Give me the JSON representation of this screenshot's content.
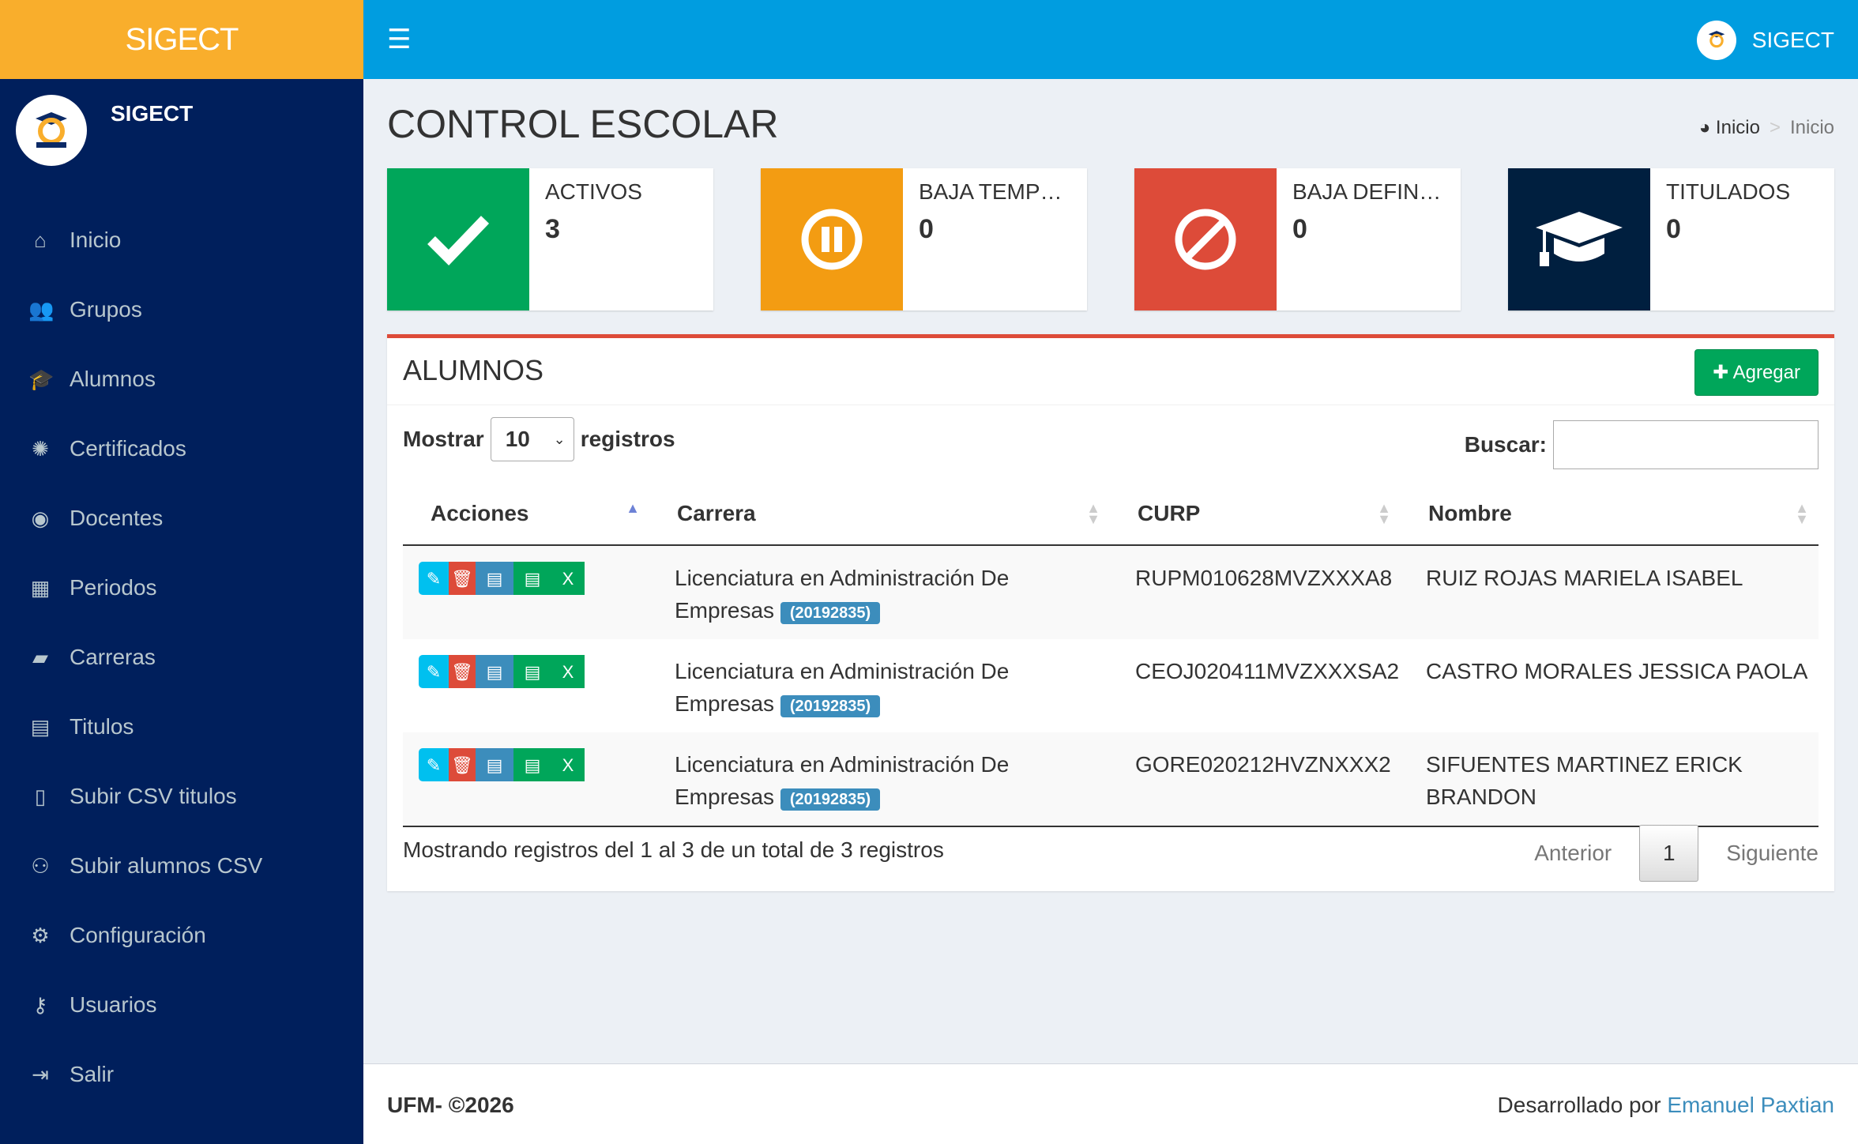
{
  "app": {
    "brand": "SIGECT",
    "user": "SIGECT",
    "logo_text": "SCHOOL"
  },
  "sidebar": {
    "items": [
      {
        "label": "Inicio",
        "icon": "home-icon"
      },
      {
        "label": "Grupos",
        "icon": "users-icon"
      },
      {
        "label": "Alumnos",
        "icon": "graduation-cap-icon"
      },
      {
        "label": "Certificados",
        "icon": "certificate-icon"
      },
      {
        "label": "Docentes",
        "icon": "user-circle-icon"
      },
      {
        "label": "Periodos",
        "icon": "calendar-icon"
      },
      {
        "label": "Carreras",
        "icon": "book-icon"
      },
      {
        "label": "Titulos",
        "icon": "id-card-icon"
      },
      {
        "label": "Subir CSV titulos",
        "icon": "file-excel-icon"
      },
      {
        "label": "Subir alumnos CSV",
        "icon": "user-plus-icon"
      },
      {
        "label": "Configuración",
        "icon": "gear-icon"
      },
      {
        "label": "Usuarios",
        "icon": "key-icon"
      },
      {
        "label": "Salir",
        "icon": "sign-out-icon"
      }
    ]
  },
  "page": {
    "title": "CONTROL ESCOLAR",
    "breadcrumb": [
      "Inicio",
      "Inicio"
    ]
  },
  "stats": [
    {
      "label": "ACTIVOS",
      "value": "3",
      "color": "#00a65a",
      "icon": "check-icon"
    },
    {
      "label": "BAJA TEMP…",
      "value": "0",
      "color": "#f39c12",
      "icon": "pause-icon"
    },
    {
      "label": "BAJA DEFIN…",
      "value": "0",
      "color": "#dd4b39",
      "icon": "ban-icon"
    },
    {
      "label": "TITULADOS",
      "value": "0",
      "color": "#001f3f",
      "icon": "graduation-cap-icon"
    }
  ],
  "panel": {
    "title": "ALUMNOS",
    "add_label": "Agregar",
    "show_label": "Mostrar",
    "page_size": "10",
    "records_label": "registros",
    "search_label": "Buscar:",
    "search_value": "",
    "columns": [
      "Acciones",
      "Carrera",
      "CURP",
      "Nombre"
    ],
    "rows": [
      {
        "carrera": "Licenciatura en Administración De Empresas",
        "code": "(20192835)",
        "curp": "RUPM010628MVZXXXA8",
        "nombre": "RUIZ ROJAS MARIELA ISABEL"
      },
      {
        "carrera": "Licenciatura en Administración De Empresas",
        "code": "(20192835)",
        "curp": "CEOJ020411MVZXXXSA2",
        "nombre": "CASTRO MORALES JESSICA PAOLA"
      },
      {
        "carrera": "Licenciatura en Administración De Empresas",
        "code": "(20192835)",
        "curp": "GORE020212HVZNXXX2",
        "nombre": "SIFUENTES MARTINEZ ERICK BRANDON"
      }
    ],
    "info": "Mostrando registros del 1 al 3 de un total de 3 registros",
    "prev": "Anterior",
    "page": "1",
    "next": "Siguiente"
  },
  "footer": {
    "left": "UFM- ©2026",
    "right_prefix": "Desarrollado por",
    "author": "Emanuel Paxtian"
  }
}
